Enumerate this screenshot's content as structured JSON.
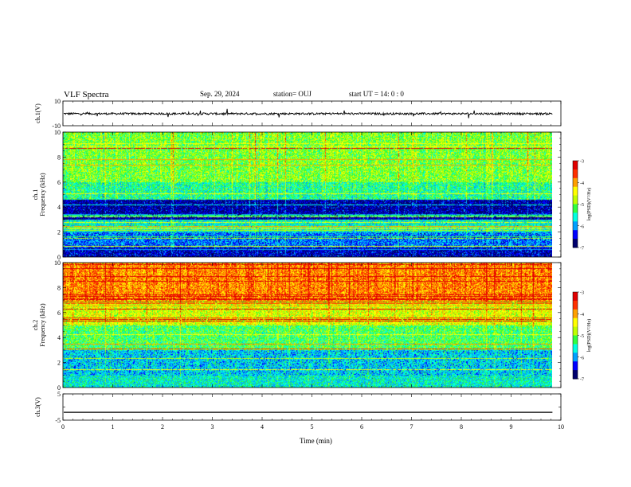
{
  "header": {
    "title": "VLF Spectra",
    "date": "Sep. 29, 2024",
    "station": "station= OUJ",
    "start": "start  UT =   14: 0  : 0"
  },
  "colors": {
    "axis": "#000000",
    "colormap": [
      "#00006e",
      "#0000ff",
      "#00a0ff",
      "#00ffe0",
      "#30ff40",
      "#c0ff00",
      "#ffff00",
      "#ffa000",
      "#ff3000",
      "#e00000"
    ]
  },
  "chart_data": [
    {
      "type": "line",
      "ylabel": "ch.1(V)",
      "ylim": [
        -10,
        10
      ],
      "yticks": [
        "10",
        "-10"
      ],
      "xlim": [
        0,
        10
      ],
      "series": [
        {
          "values_description_range": [
            -1.2,
            1.0
          ]
        }
      ]
    },
    {
      "type": "heatmap",
      "panel_label": "ch.1",
      "ylabel": "Frequency (kHz)",
      "ylim": [
        0,
        10
      ],
      "yticks": [
        "0",
        "2",
        "4",
        "6",
        "8",
        "10"
      ],
      "xlim": [
        0,
        9.83
      ],
      "colorbar": {
        "label": "log(PSD)(V²/Hz)",
        "range": [
          -7,
          -3
        ],
        "ticks": [
          "-3",
          "-4",
          "-5",
          "-6",
          "-7"
        ]
      },
      "band_levels": [
        {
          "fmin": 0,
          "fmax": 0.8,
          "log_psd": -6.6
        },
        {
          "fmin": 0.8,
          "fmax": 2.0,
          "log_psd": -6.1
        },
        {
          "fmin": 2.0,
          "fmax": 3.0,
          "log_psd": -5.6
        },
        {
          "fmin": 3.0,
          "fmax": 4.6,
          "log_psd": -6.7
        },
        {
          "fmin": 4.6,
          "fmax": 6.0,
          "log_psd": -5.4
        },
        {
          "fmin": 6.0,
          "fmax": 10,
          "log_psd": -5.0
        }
      ]
    },
    {
      "type": "heatmap",
      "panel_label": "ch.2",
      "ylabel": "Frequency (kHz)",
      "ylim": [
        0,
        10
      ],
      "yticks": [
        "0",
        "2",
        "4",
        "6",
        "8",
        "10"
      ],
      "xlim": [
        0,
        9.83
      ],
      "colorbar": {
        "label": "log(PSD)(V²/Hz)",
        "range": [
          -7,
          -3
        ],
        "ticks": [
          "-3",
          "-4",
          "-5",
          "-6",
          "-7"
        ]
      },
      "band_levels": [
        {
          "fmin": 0,
          "fmax": 1.0,
          "log_psd": -5.6
        },
        {
          "fmin": 1.0,
          "fmax": 3.0,
          "log_psd": -5.8
        },
        {
          "fmin": 3.0,
          "fmax": 5.0,
          "log_psd": -5.2
        },
        {
          "fmin": 5.0,
          "fmax": 7.0,
          "log_psd": -4.6
        },
        {
          "fmin": 7.0,
          "fmax": 10,
          "log_psd": -3.9
        }
      ]
    },
    {
      "type": "line",
      "ylabel": "ch.3(V)",
      "ylim": [
        -5,
        5
      ],
      "yticks": [
        "5",
        "0",
        "-5"
      ],
      "xlim": [
        0,
        10
      ],
      "series": [
        {
          "constant": -2.0
        }
      ]
    }
  ],
  "xaxis": {
    "label": "Time (min)",
    "ticks": [
      "0",
      "1",
      "2",
      "3",
      "4",
      "5",
      "6",
      "7",
      "8",
      "9",
      "10"
    ]
  }
}
